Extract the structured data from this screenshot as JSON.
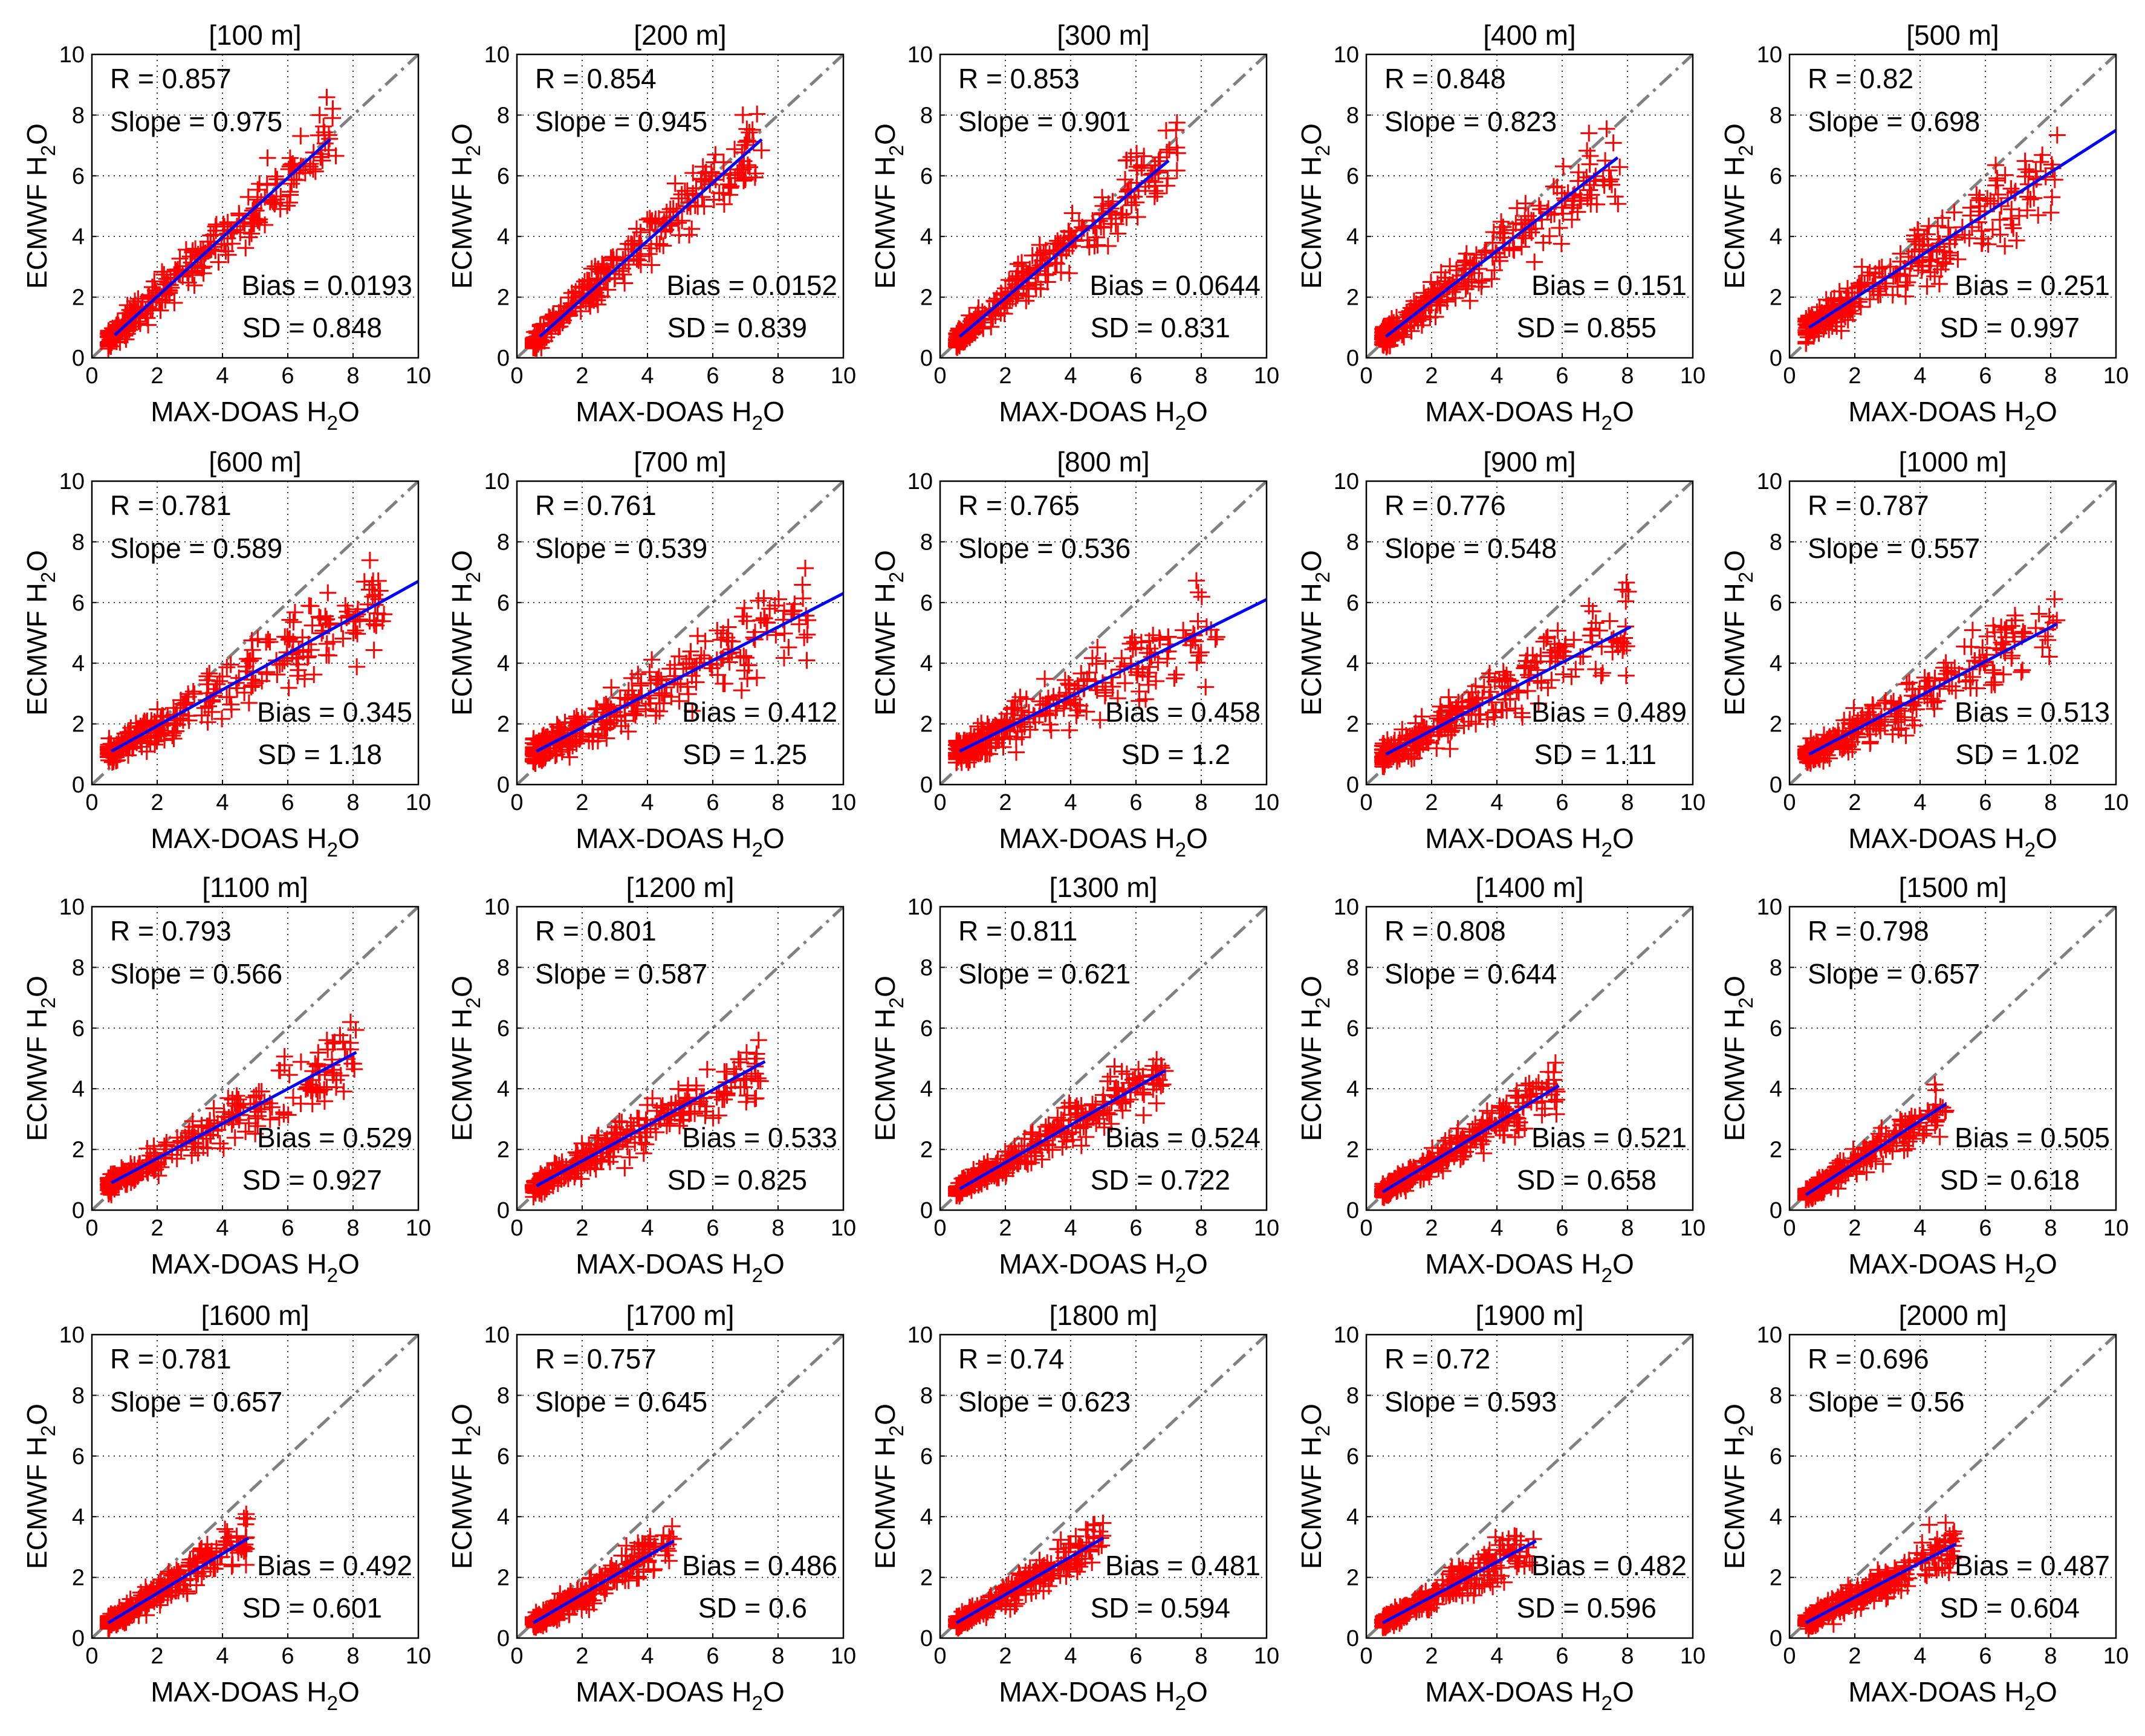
{
  "colors": {
    "points": "#ff0000",
    "fit_line": "#0000ff",
    "reference_line": "#808080",
    "grid": "#000000",
    "axes": "#000000"
  },
  "chart_data": [
    {
      "type": "scatter",
      "title": "[100 m]",
      "xlabel": "MAX-DOAS H",
      "ylabel": "ECMWF H",
      "label_subscript": "2",
      "label_suffix": "O",
      "xlim": [
        0,
        10
      ],
      "ylim": [
        0,
        10
      ],
      "ticks": [
        "0",
        "2",
        "4",
        "6",
        "8",
        "10"
      ],
      "stats": {
        "r": "R = 0.857",
        "slope": "Slope = 0.975",
        "bias": "Bias = 0.0193",
        "sd": "SD = 0.848"
      },
      "fit": {
        "x": [
          0.7,
          7.3
        ],
        "y": [
          0.75,
          7.2
        ]
      },
      "cluster": {
        "x_min": 0.5,
        "x_max": 7.5,
        "spread": 0.95
      }
    },
    {
      "type": "scatter",
      "title": "[200 m]",
      "xlabel": "MAX-DOAS H",
      "ylabel": "ECMWF H",
      "label_subscript": "2",
      "label_suffix": "O",
      "xlim": [
        0,
        10
      ],
      "ylim": [
        0,
        10
      ],
      "ticks": [
        "0",
        "2",
        "4",
        "6",
        "8",
        "10"
      ],
      "stats": {
        "r": "R = 0.854",
        "slope": "Slope = 0.945",
        "bias": "Bias = 0.0152",
        "sd": "SD = 0.839"
      },
      "fit": {
        "x": [
          0.7,
          7.5
        ],
        "y": [
          0.7,
          7.2
        ]
      },
      "cluster": {
        "x_min": 0.5,
        "x_max": 7.5,
        "spread": 0.95
      }
    },
    {
      "type": "scatter",
      "title": "[300 m]",
      "xlabel": "MAX-DOAS H",
      "ylabel": "ECMWF H",
      "label_subscript": "2",
      "label_suffix": "O",
      "xlim": [
        0,
        10
      ],
      "ylim": [
        0,
        10
      ],
      "ticks": [
        "0",
        "2",
        "4",
        "6",
        "8",
        "10"
      ],
      "stats": {
        "r": "R = 0.853",
        "slope": "Slope = 0.901",
        "bias": "Bias = 0.0644",
        "sd": "SD = 0.831"
      },
      "fit": {
        "x": [
          0.6,
          7.0
        ],
        "y": [
          0.7,
          6.5
        ]
      },
      "cluster": {
        "x_min": 0.5,
        "x_max": 7.3,
        "spread": 0.95
      }
    },
    {
      "type": "scatter",
      "title": "[400 m]",
      "xlabel": "MAX-DOAS H",
      "ylabel": "ECMWF H",
      "label_subscript": "2",
      "label_suffix": "O",
      "xlim": [
        0,
        10
      ],
      "ylim": [
        0,
        10
      ],
      "ticks": [
        "0",
        "2",
        "4",
        "6",
        "8",
        "10"
      ],
      "stats": {
        "r": "R = 0.848",
        "slope": "Slope = 0.823",
        "bias": "Bias = 0.151",
        "sd": "SD = 0.855"
      },
      "fit": {
        "x": [
          0.6,
          7.7
        ],
        "y": [
          0.7,
          6.6
        ]
      },
      "cluster": {
        "x_min": 0.5,
        "x_max": 7.8,
        "spread": 1.0
      }
    },
    {
      "type": "scatter",
      "title": "[500 m]",
      "xlabel": "MAX-DOAS H",
      "ylabel": "ECMWF H",
      "label_subscript": "2",
      "label_suffix": "O",
      "xlim": [
        0,
        10
      ],
      "ylim": [
        0,
        10
      ],
      "ticks": [
        "0",
        "2",
        "4",
        "6",
        "8",
        "10"
      ],
      "stats": {
        "r": "R = 0.82",
        "slope": "Slope = 0.698",
        "bias": "Bias = 0.251",
        "sd": "SD = 0.997"
      },
      "fit": {
        "x": [
          0.6,
          10.0
        ],
        "y": [
          1.0,
          7.5
        ]
      },
      "cluster": {
        "x_min": 0.5,
        "x_max": 8.2,
        "spread": 1.1
      }
    },
    {
      "type": "scatter",
      "title": "[600 m]",
      "xlabel": "MAX-DOAS H",
      "ylabel": "ECMWF H",
      "label_subscript": "2",
      "label_suffix": "O",
      "xlim": [
        0,
        10
      ],
      "ylim": [
        0,
        10
      ],
      "ticks": [
        "0",
        "2",
        "4",
        "6",
        "8",
        "10"
      ],
      "stats": {
        "r": "R = 0.781",
        "slope": "Slope = 0.589",
        "bias": "Bias = 0.345",
        "sd": "SD = 1.18"
      },
      "fit": {
        "x": [
          0.6,
          10.0
        ],
        "y": [
          1.1,
          6.7
        ]
      },
      "cluster": {
        "x_min": 0.5,
        "x_max": 9.0,
        "spread": 1.2
      }
    },
    {
      "type": "scatter",
      "title": "[700 m]",
      "xlabel": "MAX-DOAS H",
      "ylabel": "ECMWF H",
      "label_subscript": "2",
      "label_suffix": "O",
      "xlim": [
        0,
        10
      ],
      "ylim": [
        0,
        10
      ],
      "ticks": [
        "0",
        "2",
        "4",
        "6",
        "8",
        "10"
      ],
      "stats": {
        "r": "R = 0.761",
        "slope": "Slope = 0.539",
        "bias": "Bias = 0.412",
        "sd": "SD = 1.25"
      },
      "fit": {
        "x": [
          0.6,
          10.0
        ],
        "y": [
          1.1,
          6.3
        ]
      },
      "cluster": {
        "x_min": 0.5,
        "x_max": 9.0,
        "spread": 1.25
      }
    },
    {
      "type": "scatter",
      "title": "[800 m]",
      "xlabel": "MAX-DOAS H",
      "ylabel": "ECMWF H",
      "label_subscript": "2",
      "label_suffix": "O",
      "xlim": [
        0,
        10
      ],
      "ylim": [
        0,
        10
      ],
      "ticks": [
        "0",
        "2",
        "4",
        "6",
        "8",
        "10"
      ],
      "stats": {
        "r": "R = 0.765",
        "slope": "Slope = 0.536",
        "bias": "Bias = 0.458",
        "sd": "SD = 1.2"
      },
      "fit": {
        "x": [
          0.6,
          10.0
        ],
        "y": [
          1.1,
          6.1
        ]
      },
      "cluster": {
        "x_min": 0.5,
        "x_max": 8.5,
        "spread": 1.2
      }
    },
    {
      "type": "scatter",
      "title": "[900 m]",
      "xlabel": "MAX-DOAS H",
      "ylabel": "ECMWF H",
      "label_subscript": "2",
      "label_suffix": "O",
      "xlim": [
        0,
        10
      ],
      "ylim": [
        0,
        10
      ],
      "ticks": [
        "0",
        "2",
        "4",
        "6",
        "8",
        "10"
      ],
      "stats": {
        "r": "R = 0.776",
        "slope": "Slope = 0.548",
        "bias": "Bias = 0.489",
        "sd": "SD = 1.11"
      },
      "fit": {
        "x": [
          0.6,
          8.1
        ],
        "y": [
          1.0,
          5.2
        ]
      },
      "cluster": {
        "x_min": 0.5,
        "x_max": 8.1,
        "spread": 1.1
      }
    },
    {
      "type": "scatter",
      "title": "[1000 m]",
      "xlabel": "MAX-DOAS H",
      "ylabel": "ECMWF H",
      "label_subscript": "2",
      "label_suffix": "O",
      "xlim": [
        0,
        10
      ],
      "ylim": [
        0,
        10
      ],
      "ticks": [
        "0",
        "2",
        "4",
        "6",
        "8",
        "10"
      ],
      "stats": {
        "r": "R = 0.787",
        "slope": "Slope = 0.557",
        "bias": "Bias = 0.513",
        "sd": "SD = 1.02"
      },
      "fit": {
        "x": [
          0.6,
          8.2
        ],
        "y": [
          1.0,
          5.3
        ]
      },
      "cluster": {
        "x_min": 0.5,
        "x_max": 8.2,
        "spread": 1.0
      }
    },
    {
      "type": "scatter",
      "title": "[1100 m]",
      "xlabel": "MAX-DOAS H",
      "ylabel": "ECMWF H",
      "label_subscript": "2",
      "label_suffix": "O",
      "xlim": [
        0,
        10
      ],
      "ylim": [
        0,
        10
      ],
      "ticks": [
        "0",
        "2",
        "4",
        "6",
        "8",
        "10"
      ],
      "stats": {
        "r": "R = 0.793",
        "slope": "Slope = 0.566",
        "bias": "Bias = 0.529",
        "sd": "SD = 0.927"
      },
      "fit": {
        "x": [
          0.6,
          8.1
        ],
        "y": [
          0.9,
          5.2
        ]
      },
      "cluster": {
        "x_min": 0.5,
        "x_max": 8.1,
        "spread": 0.9
      }
    },
    {
      "type": "scatter",
      "title": "[1200 m]",
      "xlabel": "MAX-DOAS H",
      "ylabel": "ECMWF H",
      "label_subscript": "2",
      "label_suffix": "O",
      "xlim": [
        0,
        10
      ],
      "ylim": [
        0,
        10
      ],
      "ticks": [
        "0",
        "2",
        "4",
        "6",
        "8",
        "10"
      ],
      "stats": {
        "r": "R = 0.801",
        "slope": "Slope = 0.587",
        "bias": "Bias = 0.533",
        "sd": "SD = 0.825"
      },
      "fit": {
        "x": [
          0.6,
          7.6
        ],
        "y": [
          0.8,
          4.9
        ]
      },
      "cluster": {
        "x_min": 0.5,
        "x_max": 7.6,
        "spread": 0.85
      }
    },
    {
      "type": "scatter",
      "title": "[1300 m]",
      "xlabel": "MAX-DOAS H",
      "ylabel": "ECMWF H",
      "label_subscript": "2",
      "label_suffix": "O",
      "xlim": [
        0,
        10
      ],
      "ylim": [
        0,
        10
      ],
      "ticks": [
        "0",
        "2",
        "4",
        "6",
        "8",
        "10"
      ],
      "stats": {
        "r": "R = 0.811",
        "slope": "Slope = 0.621",
        "bias": "Bias = 0.524",
        "sd": "SD = 0.722"
      },
      "fit": {
        "x": [
          0.6,
          6.9
        ],
        "y": [
          0.7,
          4.6
        ]
      },
      "cluster": {
        "x_min": 0.5,
        "x_max": 6.9,
        "spread": 0.75
      }
    },
    {
      "type": "scatter",
      "title": "[1400 m]",
      "xlabel": "MAX-DOAS H",
      "ylabel": "ECMWF H",
      "label_subscript": "2",
      "label_suffix": "O",
      "xlim": [
        0,
        10
      ],
      "ylim": [
        0,
        10
      ],
      "ticks": [
        "0",
        "2",
        "4",
        "6",
        "8",
        "10"
      ],
      "stats": {
        "r": "R = 0.808",
        "slope": "Slope = 0.644",
        "bias": "Bias = 0.521",
        "sd": "SD = 0.658"
      },
      "fit": {
        "x": [
          0.5,
          5.9
        ],
        "y": [
          0.6,
          4.1
        ]
      },
      "cluster": {
        "x_min": 0.5,
        "x_max": 5.9,
        "spread": 0.7
      }
    },
    {
      "type": "scatter",
      "title": "[1500 m]",
      "xlabel": "MAX-DOAS H",
      "ylabel": "ECMWF H",
      "label_subscript": "2",
      "label_suffix": "O",
      "xlim": [
        0,
        10
      ],
      "ylim": [
        0,
        10
      ],
      "ticks": [
        "0",
        "2",
        "4",
        "6",
        "8",
        "10"
      ],
      "stats": {
        "r": "R = 0.798",
        "slope": "Slope = 0.657",
        "bias": "Bias = 0.505",
        "sd": "SD = 0.618"
      },
      "fit": {
        "x": [
          0.5,
          4.8
        ],
        "y": [
          0.5,
          3.5
        ]
      },
      "cluster": {
        "x_min": 0.5,
        "x_max": 4.8,
        "spread": 0.6
      }
    },
    {
      "type": "scatter",
      "title": "[1600 m]",
      "xlabel": "MAX-DOAS H",
      "ylabel": "ECMWF H",
      "label_subscript": "2",
      "label_suffix": "O",
      "xlim": [
        0,
        10
      ],
      "ylim": [
        0,
        10
      ],
      "ticks": [
        "0",
        "2",
        "4",
        "6",
        "8",
        "10"
      ],
      "stats": {
        "r": "R = 0.781",
        "slope": "Slope = 0.657",
        "bias": "Bias = 0.492",
        "sd": "SD = 0.601"
      },
      "fit": {
        "x": [
          0.5,
          4.8
        ],
        "y": [
          0.5,
          3.3
        ]
      },
      "cluster": {
        "x_min": 0.5,
        "x_max": 4.8,
        "spread": 0.6
      }
    },
    {
      "type": "scatter",
      "title": "[1700 m]",
      "xlabel": "MAX-DOAS H",
      "ylabel": "ECMWF H",
      "label_subscript": "2",
      "label_suffix": "O",
      "xlim": [
        0,
        10
      ],
      "ylim": [
        0,
        10
      ],
      "ticks": [
        "0",
        "2",
        "4",
        "6",
        "8",
        "10"
      ],
      "stats": {
        "r": "R = 0.757",
        "slope": "Slope = 0.645",
        "bias": "Bias = 0.486",
        "sd": "SD = 0.6"
      },
      "fit": {
        "x": [
          0.5,
          4.8
        ],
        "y": [
          0.5,
          3.2
        ]
      },
      "cluster": {
        "x_min": 0.5,
        "x_max": 4.8,
        "spread": 0.6
      }
    },
    {
      "type": "scatter",
      "title": "[1800 m]",
      "xlabel": "MAX-DOAS H",
      "ylabel": "ECMWF H",
      "label_subscript": "2",
      "label_suffix": "O",
      "xlim": [
        0,
        10
      ],
      "ylim": [
        0,
        10
      ],
      "ticks": [
        "0",
        "2",
        "4",
        "6",
        "8",
        "10"
      ],
      "stats": {
        "r": "R = 0.74",
        "slope": "Slope = 0.623",
        "bias": "Bias = 0.481",
        "sd": "SD = 0.594"
      },
      "fit": {
        "x": [
          0.5,
          5.0
        ],
        "y": [
          0.5,
          3.3
        ]
      },
      "cluster": {
        "x_min": 0.5,
        "x_max": 5.0,
        "spread": 0.6
      }
    },
    {
      "type": "scatter",
      "title": "[1900 m]",
      "xlabel": "MAX-DOAS H",
      "ylabel": "ECMWF H",
      "label_subscript": "2",
      "label_suffix": "O",
      "xlim": [
        0,
        10
      ],
      "ylim": [
        0,
        10
      ],
      "ticks": [
        "0",
        "2",
        "4",
        "6",
        "8",
        "10"
      ],
      "stats": {
        "r": "R = 0.72",
        "slope": "Slope = 0.593",
        "bias": "Bias = 0.482",
        "sd": "SD = 0.596"
      },
      "fit": {
        "x": [
          0.5,
          5.2
        ],
        "y": [
          0.5,
          3.2
        ]
      },
      "cluster": {
        "x_min": 0.5,
        "x_max": 5.2,
        "spread": 0.6
      }
    },
    {
      "type": "scatter",
      "title": "[2000 m]",
      "xlabel": "MAX-DOAS H",
      "ylabel": "ECMWF H",
      "label_subscript": "2",
      "label_suffix": "O",
      "xlim": [
        0,
        10
      ],
      "ylim": [
        0,
        10
      ],
      "ticks": [
        "0",
        "2",
        "4",
        "6",
        "8",
        "10"
      ],
      "stats": {
        "r": "R = 0.696",
        "slope": "Slope = 0.56",
        "bias": "Bias = 0.487",
        "sd": "SD = 0.604"
      },
      "fit": {
        "x": [
          0.5,
          5.1
        ],
        "y": [
          0.5,
          3.1
        ]
      },
      "cluster": {
        "x_min": 0.5,
        "x_max": 5.1,
        "spread": 0.6
      }
    }
  ]
}
